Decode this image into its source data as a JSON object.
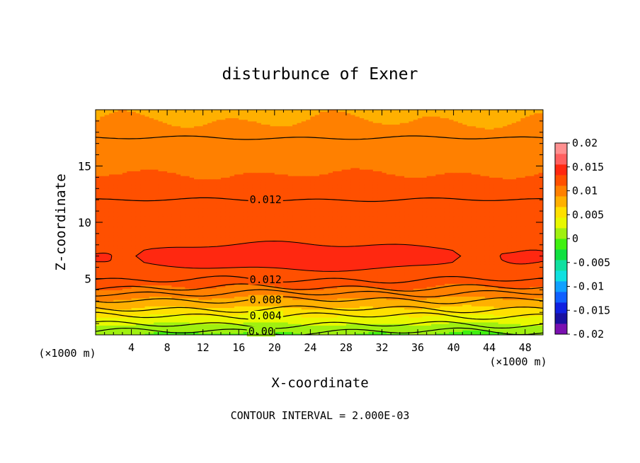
{
  "chart_data": {
    "type": "contour",
    "title": "disturbunce of Exner",
    "xlabel": "X-coordinate",
    "ylabel": "Z-coordinate",
    "x_unit_left": "(×1000 m)",
    "x_unit_right": "(×1000 m)",
    "footer": "CONTOUR INTERVAL = 2.000E-03",
    "xlim": [
      0,
      50
    ],
    "ylim": [
      0,
      20
    ],
    "x_ticks": [
      "4",
      "8",
      "12",
      "16",
      "20",
      "24",
      "28",
      "32",
      "36",
      "40",
      "44",
      "48"
    ],
    "y_ticks": [
      "5",
      "10",
      "15"
    ],
    "colorbar": {
      "ticks": [
        "0.02",
        "0.015",
        "0.01",
        "0.005",
        "0",
        "-0.005",
        "-0.01",
        "-0.015",
        "-0.02"
      ],
      "range": [
        -0.02,
        0.02
      ]
    },
    "contour_labels": [
      {
        "text": "0.012",
        "x": 19,
        "z": 12.0
      },
      {
        "text": "0.012",
        "x": 19,
        "z": 4.9
      },
      {
        "text": "0.008",
        "x": 19,
        "z": 3.1
      },
      {
        "text": "0.004",
        "x": 19,
        "z": 1.7
      },
      {
        "text": "0.00",
        "x": 18.5,
        "z": 0.3
      }
    ],
    "profile_z": [
      0,
      0.5,
      1.0,
      1.5,
      2.0,
      2.5,
      3.0,
      3.5,
      4.0,
      4.5,
      5.0,
      6.0,
      7.0,
      8.0,
      9.0,
      10.0,
      11.0,
      12.0,
      13.0,
      14.0,
      15.0,
      16.0,
      17.0,
      18.0,
      19.0,
      20.0
    ],
    "profile_values": [
      -0.0003,
      0.0007,
      0.0022,
      0.0037,
      0.0053,
      0.0068,
      0.0082,
      0.0095,
      0.0107,
      0.0115,
      0.0121,
      0.0128,
      0.0131,
      0.013,
      0.0126,
      0.0124,
      0.0122,
      0.012,
      0.0117,
      0.0113,
      0.0107,
      0.0102,
      0.0097,
      0.0093,
      0.0089,
      0.0086
    ]
  },
  "colors": {
    "palette": [
      "#7a10b0",
      "#1a10a0",
      "#1020e0",
      "#1060ff",
      "#10a0ff",
      "#10e0e0",
      "#10e0a0",
      "#10e040",
      "#40f010",
      "#a0f010",
      "#e8f800",
      "#ffe000",
      "#ffb000",
      "#ff8000",
      "#ff5000",
      "#ff2810",
      "#ff6060",
      "#ff9090"
    ]
  }
}
